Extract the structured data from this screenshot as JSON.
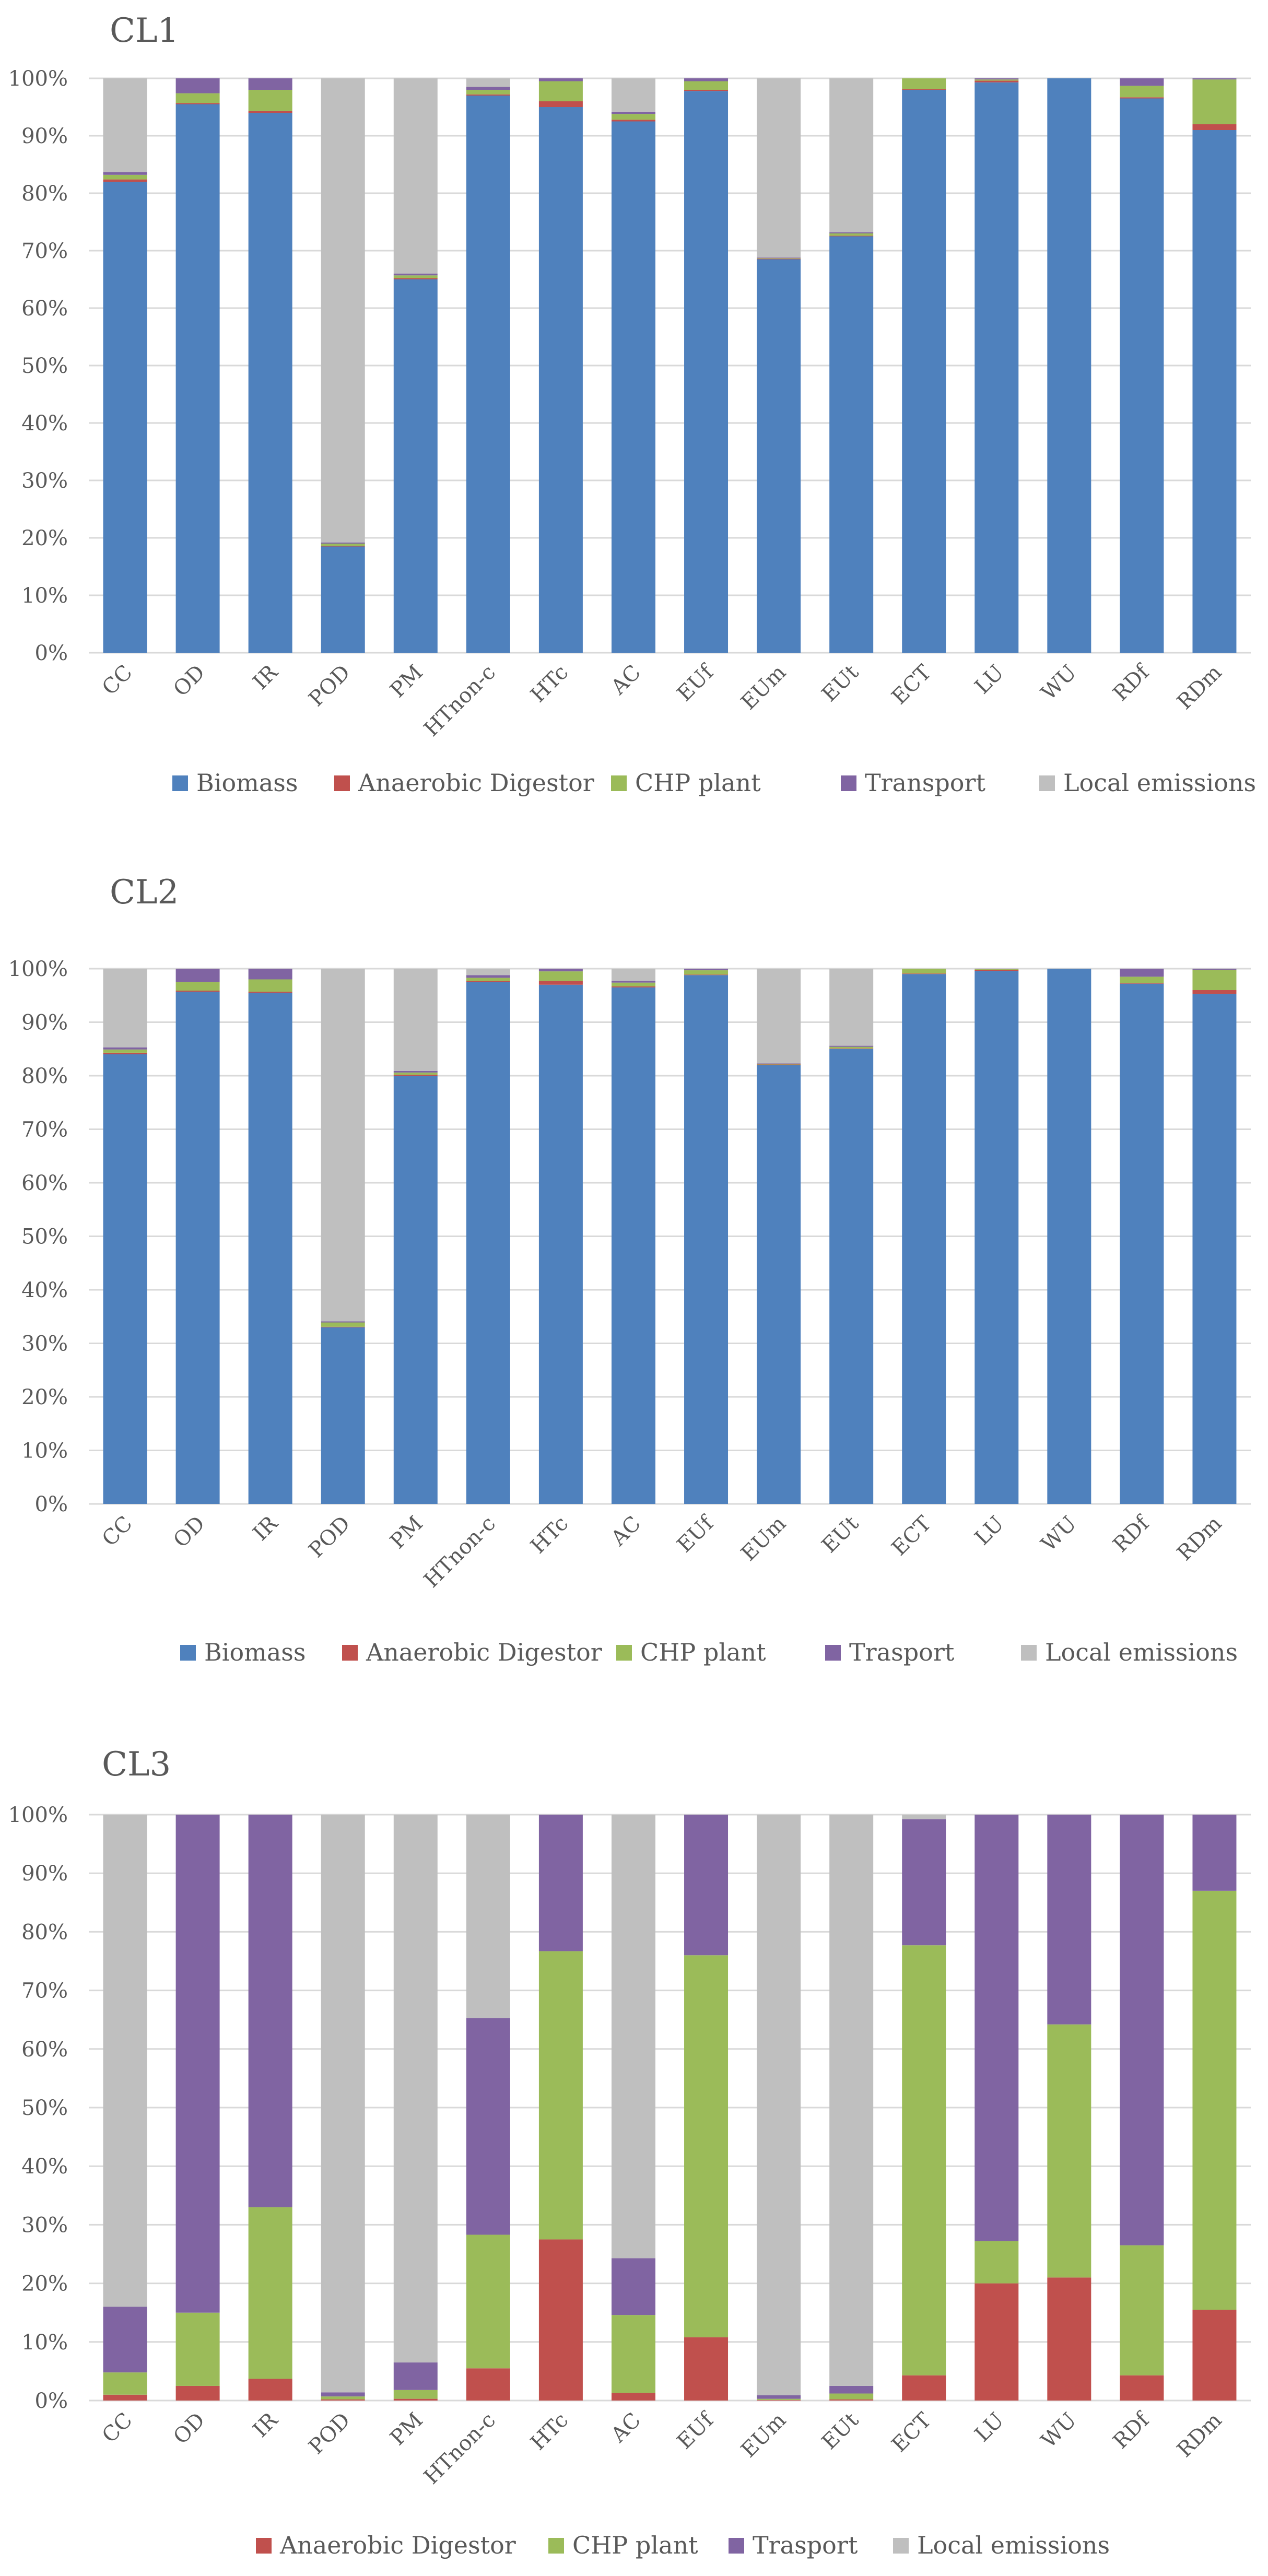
{
  "chart_data": [
    {
      "type": "stacked-bar-100",
      "title": "CL1",
      "categories": [
        "CC",
        "OD",
        "IR",
        "POD",
        "PM",
        "HTnon-c",
        "HTc",
        "AC",
        "EUf",
        "EUm",
        "EUt",
        "ECT",
        "LU",
        "WU",
        "RDf",
        "RDm"
      ],
      "y_ticks": [
        "0%",
        "10%",
        "20%",
        "30%",
        "40%",
        "50%",
        "60%",
        "70%",
        "80%",
        "90%",
        "100%"
      ],
      "ylim": [
        0,
        100
      ],
      "legend": "bottom",
      "series": [
        {
          "name": "Biomass",
          "color": "#4f81bd",
          "values": [
            82,
            95.5,
            94,
            18.5,
            65,
            97,
            95,
            92.5,
            97.8,
            68.5,
            72.5,
            98,
            99.3,
            100,
            96.5,
            91
          ]
        },
        {
          "name": "Anaerobic Digestor",
          "color": "#c0504d",
          "values": [
            0.4,
            0.2,
            0.3,
            0.1,
            0.2,
            0.2,
            1,
            0.3,
            0.2,
            0.1,
            0.1,
            0.1,
            0.3,
            0,
            0.2,
            1
          ]
        },
        {
          "name": "CHP plant",
          "color": "#9bbb59",
          "values": [
            0.8,
            1.7,
            3.7,
            0.4,
            0.5,
            0.8,
            3.5,
            1,
            1.5,
            0.1,
            0.4,
            1.9,
            0.2,
            0,
            2,
            7.8
          ]
        },
        {
          "name": "Transport",
          "color": "#8064a2",
          "values": [
            0.5,
            2.6,
            2,
            0.2,
            0.3,
            0.5,
            0.5,
            0.4,
            0.5,
            0.1,
            0.2,
            0,
            0.2,
            0,
            1.3,
            0.2
          ]
        },
        {
          "name": "Local emissions",
          "color": "#bfbfbf",
          "values": [
            16.3,
            0,
            0,
            80.8,
            34,
            1.5,
            0,
            5.8,
            0,
            31.2,
            26.8,
            0,
            0,
            0,
            0,
            0
          ]
        }
      ]
    },
    {
      "type": "stacked-bar-100",
      "title": "CL2",
      "categories": [
        "CC",
        "OD",
        "IR",
        "POD",
        "PM",
        "HTnon-c",
        "HTc",
        "AC",
        "EUf",
        "EUm",
        "EUt",
        "ECT",
        "LU",
        "WU",
        "RDf",
        "RDm"
      ],
      "y_ticks": [
        "0%",
        "10%",
        "20%",
        "30%",
        "40%",
        "50%",
        "60%",
        "70%",
        "80%",
        "90%",
        "100%"
      ],
      "ylim": [
        0,
        100
      ],
      "legend": "bottom",
      "series": [
        {
          "name": "Biomass",
          "color": "#4f81bd",
          "values": [
            84,
            95.7,
            95.5,
            33,
            80,
            97.5,
            97,
            96.5,
            98.8,
            82,
            85,
            99,
            99.6,
            100,
            97.2,
            95.3
          ]
        },
        {
          "name": "Anaerobic Digestor",
          "color": "#c0504d",
          "values": [
            0.3,
            0.2,
            0.2,
            0.1,
            0.2,
            0.2,
            0.7,
            0.2,
            0.1,
            0.1,
            0.1,
            0.1,
            0.2,
            0,
            0.1,
            0.7
          ]
        },
        {
          "name": "CHP plant",
          "color": "#9bbb59",
          "values": [
            0.6,
            1.6,
            2.3,
            0.8,
            0.4,
            0.6,
            1.8,
            0.7,
            0.8,
            0.1,
            0.3,
            0.9,
            0.1,
            0,
            1.2,
            3.8
          ]
        },
        {
          "name": "Trasport",
          "color": "#8064a2",
          "values": [
            0.4,
            2.5,
            2,
            0.2,
            0.3,
            0.5,
            0.5,
            0.3,
            0.3,
            0.1,
            0.2,
            0,
            0.1,
            0,
            1.5,
            0.2
          ]
        },
        {
          "name": "Local emissions",
          "color": "#bfbfbf",
          "values": [
            14.7,
            0,
            0,
            65.9,
            19.1,
            1.2,
            0,
            2.3,
            0,
            17.7,
            14.4,
            0,
            0,
            0,
            0,
            0
          ]
        }
      ]
    },
    {
      "type": "stacked-bar-100",
      "title": "CL3",
      "categories": [
        "CC",
        "OD",
        "IR",
        "POD",
        "PM",
        "HTnon-c",
        "HTc",
        "AC",
        "EUf",
        "EUm",
        "EUt",
        "ECT",
        "LU",
        "WU",
        "RDf",
        "RDm"
      ],
      "y_ticks": [
        "0%",
        "10%",
        "20%",
        "30%",
        "40%",
        "50%",
        "60%",
        "70%",
        "80%",
        "90%",
        "100%"
      ],
      "ylim": [
        0,
        100
      ],
      "legend": "bottom",
      "series": [
        {
          "name": "Anaerobic Digestor",
          "color": "#c0504d",
          "values": [
            1,
            2.5,
            3.7,
            0.2,
            0.3,
            5.5,
            27.5,
            1.3,
            10.8,
            0.1,
            0.2,
            4.3,
            20,
            21,
            4.3,
            15.5
          ]
        },
        {
          "name": "CHP plant",
          "color": "#9bbb59",
          "values": [
            3.8,
            12.5,
            29.3,
            0.5,
            1.5,
            22.8,
            49.2,
            13.3,
            65.2,
            0.2,
            1,
            73.4,
            7.2,
            43.2,
            22.2,
            71.5
          ]
        },
        {
          "name": "Trasport",
          "color": "#8064a2",
          "values": [
            11.2,
            85,
            67,
            0.7,
            4.7,
            37,
            23.3,
            9.7,
            24,
            0.6,
            1.3,
            21.5,
            72.8,
            35.8,
            73.5,
            13
          ]
        },
        {
          "name": "Local emissions",
          "color": "#bfbfbf",
          "values": [
            84,
            0,
            0,
            98.6,
            93.5,
            34.7,
            0,
            75.7,
            0,
            99.1,
            97.5,
            0.8,
            0,
            0,
            0,
            0
          ]
        }
      ]
    }
  ]
}
